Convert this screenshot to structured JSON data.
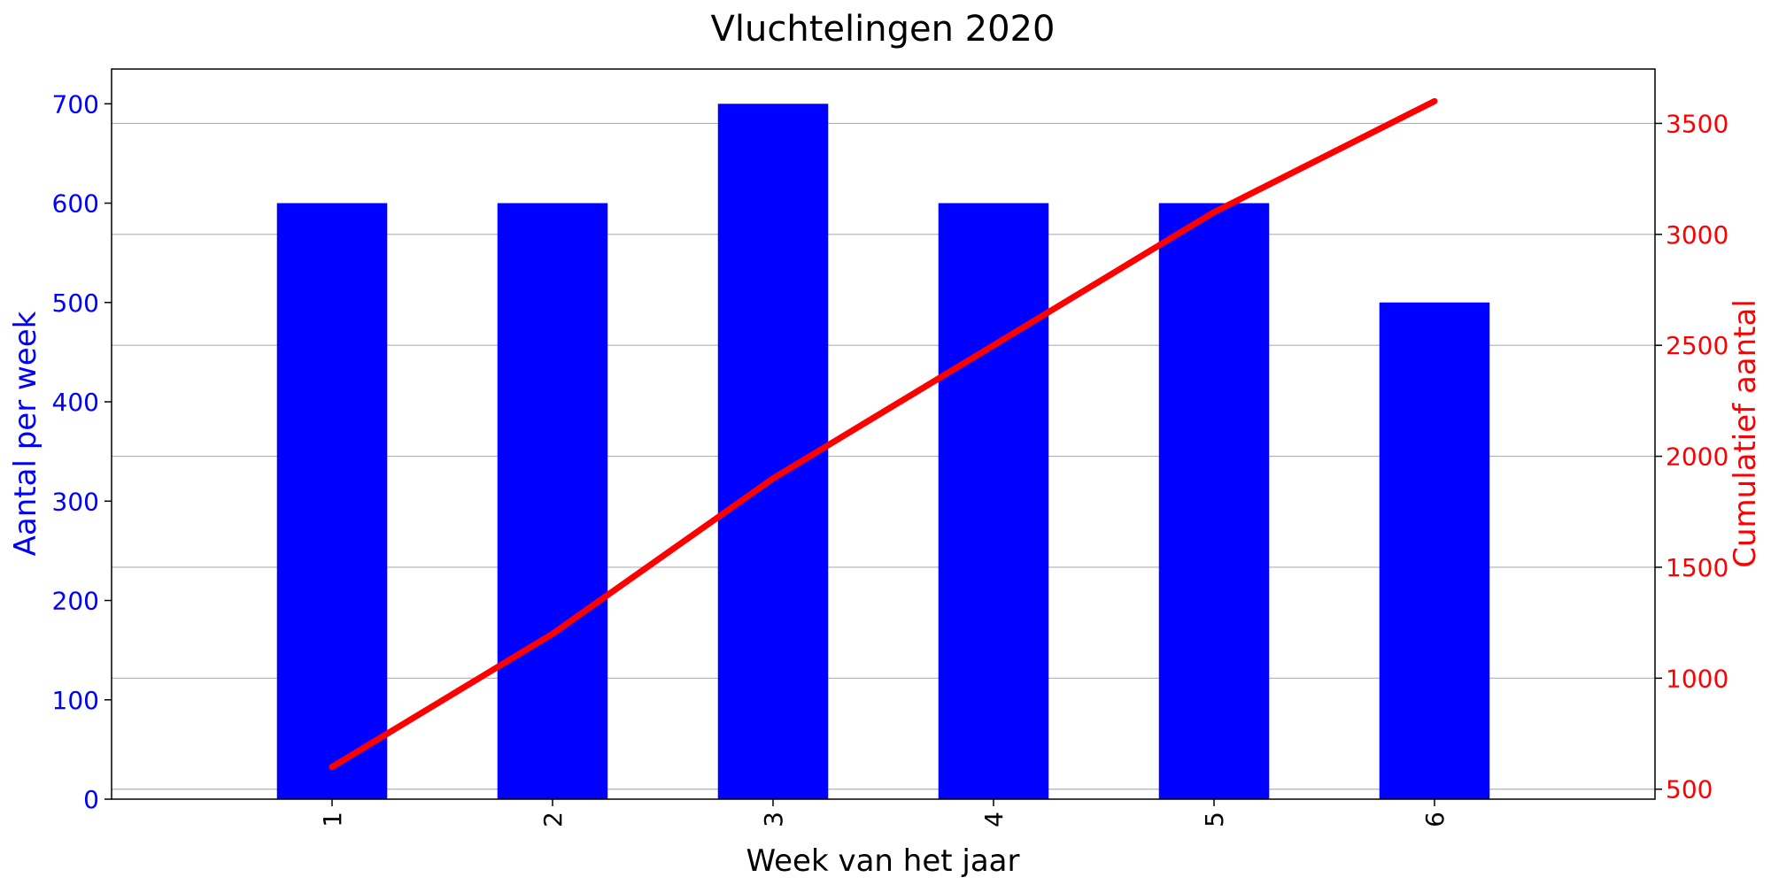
{
  "chart_data": {
    "type": "bar+line",
    "title": "Vluchtelingen 2020",
    "xlabel": "Week van het jaar",
    "categories": [
      "1",
      "2",
      "3",
      "4",
      "5",
      "6"
    ],
    "left_axis": {
      "label": "Aantal per week",
      "color": "#0000ff",
      "ylim": [
        0,
        735
      ],
      "ticks": [
        0,
        100,
        200,
        300,
        400,
        500,
        600,
        700
      ]
    },
    "right_axis": {
      "label": "Cumulatief aantal",
      "color": "#ff0000",
      "ylim": [
        455,
        3745
      ],
      "ticks": [
        500,
        1000,
        1500,
        2000,
        2500,
        3000,
        3500
      ]
    },
    "bars": {
      "axis": "left",
      "color": "#0000ff",
      "values": [
        600,
        600,
        700,
        600,
        600,
        500
      ]
    },
    "line": {
      "axis": "right",
      "color": "#ff0000",
      "values": [
        600,
        1200,
        1900,
        2500,
        3100,
        3600
      ]
    },
    "grid": "horizontal (right axis)"
  }
}
